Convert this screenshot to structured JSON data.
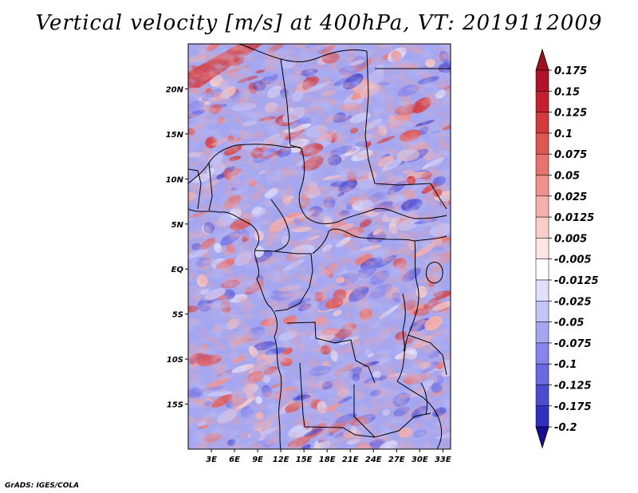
{
  "title": "Vertical velocity [m/s] at 400hPa, VT: 2019112009",
  "credit": "GrADS: IGES/COLA",
  "map": {
    "lon_range": [
      0,
      34
    ],
    "lat_range": [
      -20,
      25
    ],
    "lat_ticks": [
      {
        "value": 20,
        "label": "20N"
      },
      {
        "value": 15,
        "label": "15N"
      },
      {
        "value": 10,
        "label": "10N"
      },
      {
        "value": 5,
        "label": "5N"
      },
      {
        "value": 0,
        "label": "EQ"
      },
      {
        "value": -5,
        "label": "5S"
      },
      {
        "value": -10,
        "label": "10S"
      },
      {
        "value": -15,
        "label": "15S"
      }
    ],
    "lon_ticks": [
      {
        "value": 3,
        "label": "3E"
      },
      {
        "value": 6,
        "label": "6E"
      },
      {
        "value": 9,
        "label": "9E"
      },
      {
        "value": 12,
        "label": "12E"
      },
      {
        "value": 15,
        "label": "15E"
      },
      {
        "value": 18,
        "label": "18E"
      },
      {
        "value": 21,
        "label": "21E"
      },
      {
        "value": 24,
        "label": "24E"
      },
      {
        "value": 27,
        "label": "27E"
      },
      {
        "value": 30,
        "label": "30E"
      },
      {
        "value": 33,
        "label": "33E"
      }
    ]
  },
  "colorbar": {
    "levels": [
      {
        "label": "0.175",
        "color": "#b0122a"
      },
      {
        "label": "0.15",
        "color": "#c4202e"
      },
      {
        "label": "0.125",
        "color": "#d33a3c"
      },
      {
        "label": "0.1",
        "color": "#de5654"
      },
      {
        "label": "0.075",
        "color": "#e8736e"
      },
      {
        "label": "0.05",
        "color": "#f0918c"
      },
      {
        "label": "0.025",
        "color": "#f6b0ab"
      },
      {
        "label": "0.0125",
        "color": "#f9cdc8"
      },
      {
        "label": "0.005",
        "color": "#fce6e3"
      },
      {
        "label": "-0.005",
        "color": "#fdfdfd"
      },
      {
        "label": "-0.0125",
        "color": "#e0e0fa"
      },
      {
        "label": "-0.025",
        "color": "#c4c4f6"
      },
      {
        "label": "-0.05",
        "color": "#a5a5f0"
      },
      {
        "label": "-0.075",
        "color": "#8686ea"
      },
      {
        "label": "-0.1",
        "color": "#6a6ae0"
      },
      {
        "label": "-0.125",
        "color": "#4c4cd2"
      },
      {
        "label": "-0.175",
        "color": "#3030c0"
      },
      {
        "label": "-0.2",
        "color": "#1c16a8"
      }
    ],
    "top_color": "#9e1020",
    "bottom_color": "#150e92"
  }
}
